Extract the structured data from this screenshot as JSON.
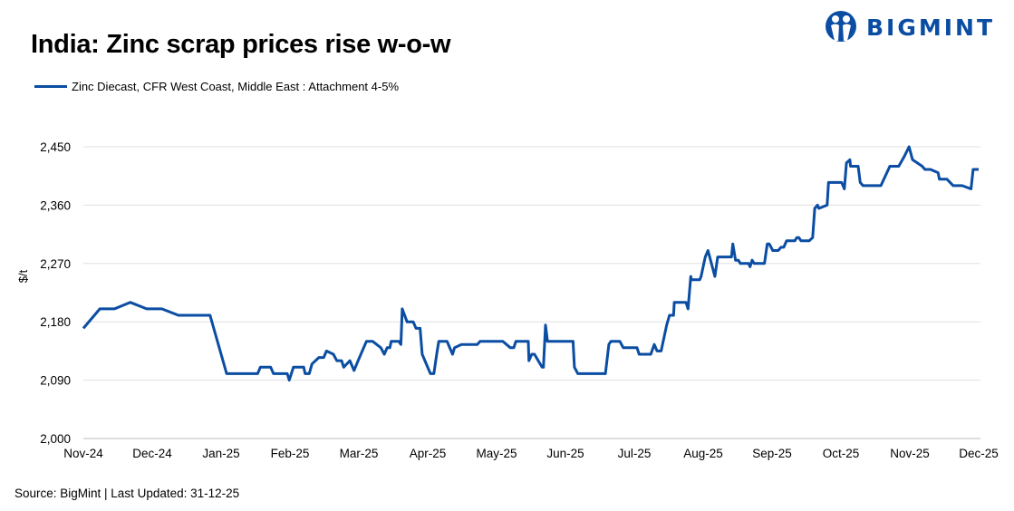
{
  "title": "India: Zinc scrap prices rise w-o-w",
  "logo_text": "BIGMINT",
  "source": "Source: BigMint | Last Updated: 31-12-25",
  "colors": {
    "line": "#0a4da2",
    "grid": "#e0e0e0",
    "brand": "#0a4da2"
  },
  "chart_data": {
    "type": "line",
    "title": "India: Zinc scrap prices rise w-o-w",
    "xlabel": "",
    "ylabel": "$/t",
    "ylim": [
      2000,
      2450
    ],
    "yticks": [
      2000,
      2090,
      2180,
      2270,
      2360,
      2450
    ],
    "ytick_labels": [
      "2,000",
      "2,090",
      "2,180",
      "2,270",
      "2,360",
      "2,450"
    ],
    "xlim": [
      0,
      13
    ],
    "xtick_labels": [
      "Nov-24",
      "Dec-24",
      "Jan-25",
      "Feb-25",
      "Mar-25",
      "Apr-25",
      "May-25",
      "Jun-25",
      "Jul-25",
      "Aug-25",
      "Sep-25",
      "Oct-25",
      "Nov-25",
      "Dec-25"
    ],
    "x_unit": "months since Nov-24",
    "grid": true,
    "legend_position": "top-left",
    "series": [
      {
        "name": "Zinc Diecast, CFR West Coast, Middle East : Attachment 4-5%",
        "points": [
          [
            0,
            2170
          ],
          [
            0.24,
            2200
          ],
          [
            0.45,
            2200
          ],
          [
            0.68,
            2210
          ],
          [
            0.92,
            2200
          ],
          [
            1.14,
            2200
          ],
          [
            1.38,
            2190
          ],
          [
            1.84,
            2190
          ],
          [
            2.08,
            2100
          ],
          [
            2.53,
            2100
          ],
          [
            2.57,
            2110
          ],
          [
            2.72,
            2110
          ],
          [
            2.76,
            2100
          ],
          [
            2.96,
            2100
          ],
          [
            2.99,
            2090
          ],
          [
            3.05,
            2110
          ],
          [
            3.2,
            2110
          ],
          [
            3.22,
            2100
          ],
          [
            3.28,
            2100
          ],
          [
            3.32,
            2115
          ],
          [
            3.42,
            2125
          ],
          [
            3.49,
            2125
          ],
          [
            3.53,
            2135
          ],
          [
            3.63,
            2130
          ],
          [
            3.68,
            2120
          ],
          [
            3.75,
            2120
          ],
          [
            3.78,
            2110
          ],
          [
            3.87,
            2120
          ],
          [
            3.93,
            2105
          ],
          [
            3.99,
            2120
          ],
          [
            4.11,
            2150
          ],
          [
            4.2,
            2150
          ],
          [
            4.32,
            2140
          ],
          [
            4.37,
            2130
          ],
          [
            4.41,
            2140
          ],
          [
            4.45,
            2140
          ],
          [
            4.47,
            2150
          ],
          [
            4.58,
            2150
          ],
          [
            4.61,
            2145
          ],
          [
            4.63,
            2200
          ],
          [
            4.7,
            2180
          ],
          [
            4.79,
            2180
          ],
          [
            4.83,
            2170
          ],
          [
            4.89,
            2170
          ],
          [
            4.92,
            2130
          ],
          [
            5.04,
            2100
          ],
          [
            5.09,
            2100
          ],
          [
            5.13,
            2130
          ],
          [
            5.16,
            2150
          ],
          [
            5.28,
            2150
          ],
          [
            5.36,
            2130
          ],
          [
            5.39,
            2140
          ],
          [
            5.49,
            2145
          ],
          [
            5.72,
            2145
          ],
          [
            5.76,
            2150
          ],
          [
            6.09,
            2150
          ],
          [
            6.2,
            2140
          ],
          [
            6.25,
            2140
          ],
          [
            6.28,
            2150
          ],
          [
            6.46,
            2150
          ],
          [
            6.47,
            2120
          ],
          [
            6.51,
            2130
          ],
          [
            6.55,
            2130
          ],
          [
            6.66,
            2110
          ],
          [
            6.68,
            2110
          ],
          [
            6.71,
            2175
          ],
          [
            6.74,
            2150
          ],
          [
            7.11,
            2150
          ],
          [
            7.13,
            2110
          ],
          [
            7.18,
            2100
          ],
          [
            7.58,
            2100
          ],
          [
            7.63,
            2145
          ],
          [
            7.66,
            2150
          ],
          [
            7.79,
            2150
          ],
          [
            7.84,
            2140
          ],
          [
            8.04,
            2140
          ],
          [
            8.07,
            2130
          ],
          [
            8.24,
            2130
          ],
          [
            8.29,
            2145
          ],
          [
            8.33,
            2135
          ],
          [
            8.39,
            2135
          ],
          [
            8.47,
            2175
          ],
          [
            8.51,
            2190
          ],
          [
            8.57,
            2190
          ],
          [
            8.58,
            2210
          ],
          [
            8.75,
            2210
          ],
          [
            8.78,
            2200
          ],
          [
            8.82,
            2250
          ],
          [
            8.83,
            2245
          ],
          [
            8.95,
            2245
          ],
          [
            8.97,
            2250
          ],
          [
            9.03,
            2280
          ],
          [
            9.07,
            2290
          ],
          [
            9.17,
            2250
          ],
          [
            9.21,
            2280
          ],
          [
            9.41,
            2280
          ],
          [
            9.43,
            2300
          ],
          [
            9.47,
            2275
          ],
          [
            9.51,
            2275
          ],
          [
            9.54,
            2270
          ],
          [
            9.66,
            2270
          ],
          [
            9.68,
            2265
          ],
          [
            9.71,
            2275
          ],
          [
            9.74,
            2270
          ],
          [
            9.89,
            2270
          ],
          [
            9.93,
            2300
          ],
          [
            9.96,
            2300
          ],
          [
            10.01,
            2290
          ],
          [
            10.09,
            2290
          ],
          [
            10.13,
            2295
          ],
          [
            10.17,
            2295
          ],
          [
            10.21,
            2305
          ],
          [
            10.33,
            2305
          ],
          [
            10.36,
            2310
          ],
          [
            10.39,
            2310
          ],
          [
            10.42,
            2305
          ],
          [
            10.54,
            2305
          ],
          [
            10.59,
            2310
          ],
          [
            10.62,
            2355
          ],
          [
            10.66,
            2360
          ],
          [
            10.68,
            2355
          ],
          [
            10.8,
            2360
          ],
          [
            10.82,
            2395
          ],
          [
            11.01,
            2395
          ],
          [
            11.05,
            2385
          ],
          [
            11.08,
            2425
          ],
          [
            11.13,
            2430
          ],
          [
            11.14,
            2420
          ],
          [
            11.25,
            2420
          ],
          [
            11.28,
            2395
          ],
          [
            11.32,
            2390
          ],
          [
            11.58,
            2390
          ],
          [
            11.71,
            2420
          ],
          [
            11.84,
            2420
          ],
          [
            11.92,
            2435
          ],
          [
            11.99,
            2450
          ],
          [
            12.04,
            2430
          ],
          [
            12.11,
            2425
          ],
          [
            12.18,
            2420
          ],
          [
            12.22,
            2415
          ],
          [
            12.3,
            2415
          ],
          [
            12.41,
            2410
          ],
          [
            12.43,
            2400
          ],
          [
            12.54,
            2400
          ],
          [
            12.63,
            2390
          ],
          [
            12.76,
            2390
          ],
          [
            12.89,
            2385
          ],
          [
            12.92,
            2415
          ],
          [
            13,
            2415
          ]
        ]
      }
    ]
  }
}
